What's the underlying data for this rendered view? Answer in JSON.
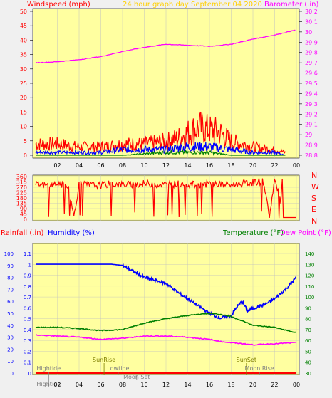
{
  "colors": {
    "background": "#f0f0f0",
    "plot_bg": "#ffffa0",
    "wind": "#ff0000",
    "gust_layer": "#0000ff",
    "low_layer": "#008000",
    "barometer": "#ff00ff",
    "title": "#ffd000",
    "humidity": "#0000ff",
    "temperature": "#008000",
    "dew_point": "#ff00ff",
    "rain": "#ff0000",
    "events": "#808080",
    "sun_events": "#808000",
    "grid": "#c0c0c0"
  },
  "chart_data": [
    {
      "type": "line",
      "title": "24 hour graph day   September 04 2020",
      "left_label": "Windspeed (mph)",
      "right_label": "Barometer (.in)",
      "x_ticks": [
        "02",
        "04",
        "06",
        "08",
        "10",
        "12",
        "14",
        "16",
        "18",
        "20",
        "22",
        "00"
      ],
      "x_range": [
        0,
        24
      ],
      "y_left_ticks": [
        "0",
        "5",
        "10",
        "15",
        "20",
        "25",
        "30",
        "35",
        "40",
        "45",
        "50"
      ],
      "y_left_range": [
        0,
        50
      ],
      "y_right_ticks": [
        "28.8",
        "28.9",
        "29",
        "29.1",
        "29.2",
        "29.3",
        "29.4",
        "29.5",
        "29.6",
        "29.7",
        "29.8",
        "29.9",
        "30",
        "30.1",
        "30.2"
      ],
      "y_right_range": [
        28.8,
        30.2
      ],
      "series": [
        {
          "axis": "left",
          "x": [
            0,
            2,
            4,
            6,
            8,
            10,
            12,
            13,
            14,
            15,
            16,
            17,
            18,
            20,
            22,
            23
          ],
          "values": [
            4,
            4,
            3,
            3,
            4,
            4,
            5,
            6,
            8,
            10,
            9,
            8,
            5,
            3,
            2,
            1
          ]
        },
        {
          "axis": "left",
          "x": [
            0,
            2,
            4,
            6,
            8,
            10,
            12,
            14,
            16,
            18,
            20,
            22,
            23
          ],
          "values": [
            1,
            1,
            1,
            1,
            2,
            2,
            2,
            3,
            3,
            2,
            1,
            1,
            0
          ]
        },
        {
          "axis": "left",
          "x": [
            0,
            4,
            8,
            12,
            14,
            16,
            18,
            20,
            23
          ],
          "values": [
            0,
            0,
            0,
            1,
            1,
            1,
            0,
            0,
            0
          ]
        },
        {
          "axis": "right",
          "x": [
            0,
            2,
            4,
            6,
            8,
            10,
            12,
            14,
            16,
            18,
            20,
            22,
            24
          ],
          "values": [
            29.7,
            29.71,
            29.73,
            29.76,
            29.81,
            29.85,
            29.88,
            29.87,
            29.86,
            29.88,
            29.93,
            29.97,
            30.02
          ]
        }
      ]
    },
    {
      "type": "scatter",
      "x_range": [
        0,
        24
      ],
      "y_ticks": [
        "360",
        "315",
        "270",
        "225",
        "180",
        "135",
        "90",
        "45",
        "0"
      ],
      "y_range": [
        0,
        360
      ],
      "compass_labels": [
        "N",
        "W",
        "S",
        "E",
        "N"
      ],
      "series": [
        {
          "x": [
            0,
            1,
            2,
            3,
            3.5,
            4,
            5,
            6,
            7,
            8,
            9,
            10,
            11,
            12,
            13,
            14,
            15,
            16,
            17,
            18,
            19,
            20,
            21,
            21.5,
            22,
            23,
            24
          ],
          "values": [
            290,
            285,
            300,
            280,
            20,
            295,
            290,
            285,
            300,
            290,
            295,
            300,
            295,
            290,
            300,
            295,
            290,
            300,
            295,
            290,
            300,
            310,
            320,
            20,
            330,
            20,
            20
          ]
        }
      ]
    },
    {
      "type": "line",
      "left_labels": [
        "Rainfall (.in)",
        "Humidity (%)"
      ],
      "right_labels": [
        "Temperature (°F)",
        "Dew Point (°F)"
      ],
      "x_ticks": [
        "02",
        "04",
        "06",
        "08",
        "10",
        "12",
        "14",
        "16",
        "18",
        "20",
        "22",
        "00"
      ],
      "x_range": [
        0,
        24
      ],
      "y_humidity_ticks": [
        "0",
        "10",
        "20",
        "30",
        "40",
        "50",
        "60",
        "70",
        "80",
        "90",
        "100"
      ],
      "y_humidity_range": [
        0,
        100
      ],
      "y_rain_ticks": [
        "0",
        "0.1",
        "0.2",
        "0.3",
        "0.4",
        "0.5",
        "0.6",
        "0.7",
        "0.8",
        "0.9",
        "1",
        "1.1"
      ],
      "y_rain_range": [
        0,
        1.1
      ],
      "y_temp_ticks": [
        "30",
        "40",
        "50",
        "60",
        "70",
        "80",
        "90",
        "100",
        "110",
        "120",
        "130",
        "140"
      ],
      "y_temp_range": [
        30,
        140
      ],
      "series": [
        {
          "axis": "humidity",
          "x": [
            0,
            2,
            4,
            6,
            7,
            8,
            9,
            10,
            12,
            13,
            14,
            15,
            16,
            17,
            18,
            18.5,
            19,
            19.5,
            20,
            21,
            22,
            23,
            24
          ],
          "values": [
            91,
            91,
            91,
            91,
            91,
            90,
            85,
            80,
            75,
            68,
            62,
            56,
            50,
            46,
            48,
            55,
            60,
            52,
            54,
            57,
            62,
            70,
            80
          ]
        },
        {
          "axis": "temp",
          "x": [
            0,
            2,
            4,
            6,
            8,
            10,
            12,
            14,
            16,
            17,
            18,
            19,
            20,
            22,
            24
          ],
          "values": [
            72,
            72,
            71,
            69,
            70,
            76,
            80,
            83,
            85,
            84,
            82,
            78,
            74,
            72,
            67
          ]
        },
        {
          "axis": "temp",
          "x": [
            0,
            2,
            4,
            6,
            8,
            10,
            12,
            14,
            15,
            16,
            17,
            18,
            19,
            20,
            22,
            24
          ],
          "values": [
            65,
            64,
            63,
            61,
            62,
            64,
            64,
            63,
            62,
            61,
            59,
            58,
            57,
            56,
            57,
            58
          ]
        },
        {
          "axis": "rain",
          "x": [
            0,
            24
          ],
          "values": [
            0,
            0
          ]
        }
      ],
      "events": [
        {
          "label": "Hightide",
          "time": 1.2,
          "row": 1
        },
        {
          "label": "Hightide",
          "time": 1.2,
          "row": 3
        },
        {
          "label": "SunRise",
          "time": 6.3,
          "row": 0
        },
        {
          "label": "Lowtide",
          "time": 7.6,
          "row": 1
        },
        {
          "label": "Moon Set",
          "time": 9.3,
          "row": 2
        },
        {
          "label": "SunSet",
          "time": 19.4,
          "row": 0
        },
        {
          "label": "Moon Rise",
          "time": 20.6,
          "row": 1
        }
      ]
    }
  ]
}
